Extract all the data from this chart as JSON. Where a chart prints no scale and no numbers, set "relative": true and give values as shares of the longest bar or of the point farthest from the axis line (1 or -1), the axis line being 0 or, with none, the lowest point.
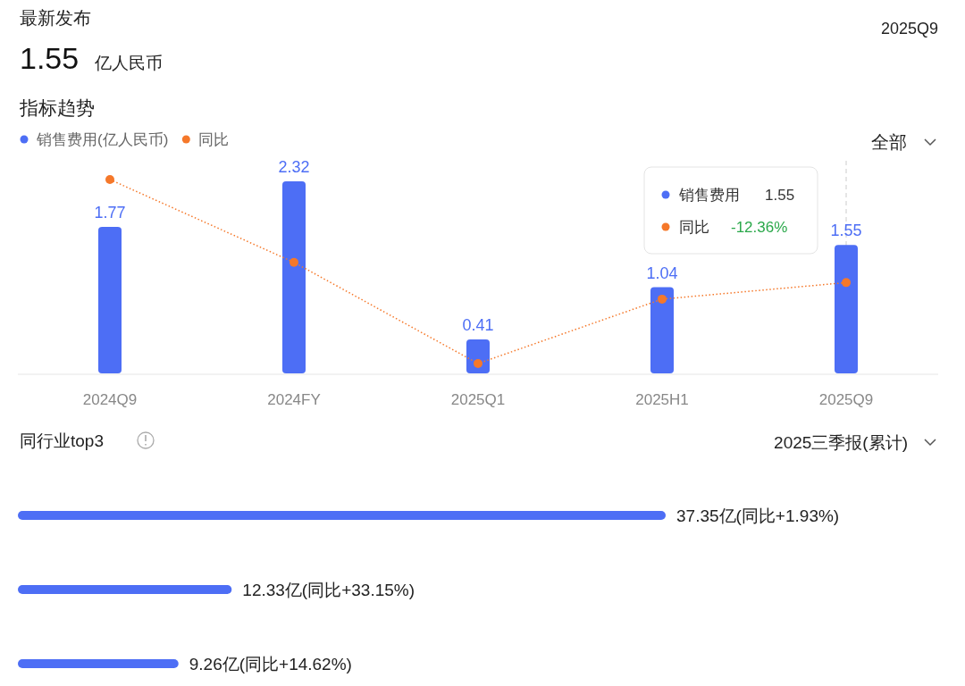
{
  "chart_data": [
    {
      "type": "bar",
      "title": "指标趋势",
      "annotations": [
        "最新发布",
        "1.55",
        "亿人民币",
        "2025Q9",
        "全部",
        "销售费用",
        "1.55"
      ],
      "categories": [
        "2024Q9",
        "2024FY",
        "2025Q1",
        "2025H1",
        "2025Q9"
      ],
      "series": [
        {
          "name": "销售费用(亿人民币)",
          "color": "#4d6ef5",
          "values": [
            1.77,
            2.32,
            0.41,
            1.04,
            1.55
          ],
          "value_labels": [
            "1.77",
            "2.32",
            "0.41",
            "1.04",
            "1.55"
          ]
        }
      ],
      "legend": "top left",
      "ref_lines": [
        {
          "axis": "x",
          "value": "2025Q9",
          "color": "#cccccc",
          "line_style": "dashed"
        }
      ]
    },
    {
      "type": "line",
      "relative": true,
      "annotations": [
        "同比",
        "-12.36%"
      ],
      "categories": [
        null,
        null,
        null,
        null,
        null
      ],
      "series": [
        {
          "name": "同比",
          "color": "#f5782a",
          "values": [
            1,
            0.55,
            0,
            0.35,
            0.44
          ]
        }
      ],
      "marker": "circle",
      "line_style": "dotted",
      "legend": "top left"
    },
    {
      "type": "bar",
      "orientation": "horizontal",
      "title": "同行业top3",
      "annotations": [
        "2025三季报(累计)"
      ],
      "categories": [
        null,
        null,
        null
      ],
      "series": [
        {
          "color": "#4d6ef5",
          "values": [
            37.35,
            12.33,
            9.26
          ],
          "value_labels": [
            "37.35亿(同比+1.93%)",
            "12.33亿(同比+33.15%)",
            "9.26亿(同比+14.62%)"
          ]
        }
      ]
    }
  ]
}
